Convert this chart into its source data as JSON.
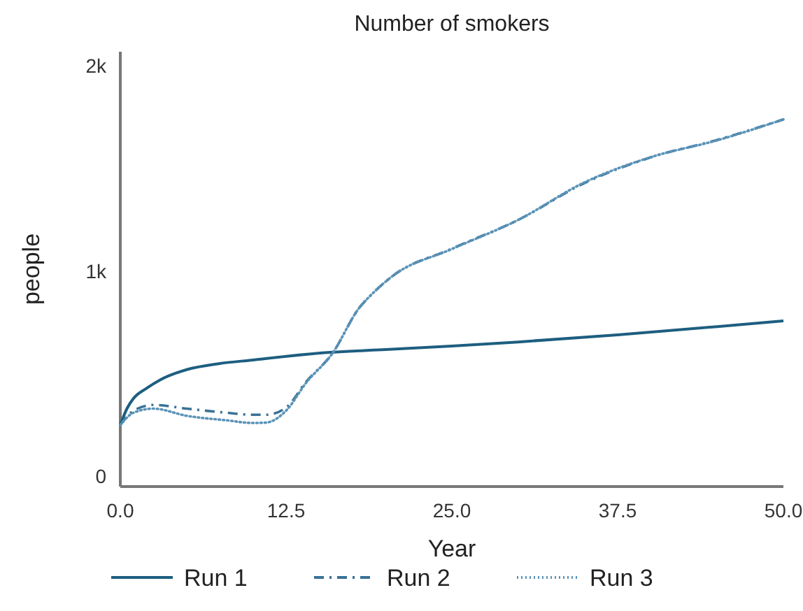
{
  "chart_data": {
    "type": "line",
    "title": "Number of smokers",
    "xlabel": "Year",
    "ylabel": "people",
    "xlim": [
      0,
      50
    ],
    "xticks": [
      {
        "value": 0,
        "label": "0.0"
      },
      {
        "value": 12.5,
        "label": "12.5"
      },
      {
        "value": 25,
        "label": "25.0"
      },
      {
        "value": 37.5,
        "label": "37.5"
      },
      {
        "value": 50,
        "label": "50.0"
      }
    ],
    "ylim": [
      -50,
      2070
    ],
    "yticks": [
      0,
      {
        "value": 1000,
        "label": "1k"
      },
      {
        "value": 2000,
        "label": "2k"
      }
    ],
    "grid": false,
    "legend": "bottom",
    "marker": "none",
    "series": [
      {
        "name": "Run 1",
        "color": "#1d5e80",
        "line_style": "solid",
        "x": [
          0,
          0.5,
          1,
          2,
          3,
          5,
          7.5,
          10,
          12.5,
          16,
          20,
          25,
          30,
          37.5,
          45,
          50
        ],
        "values": [
          250,
          330,
          380,
          430,
          470,
          520,
          550,
          567,
          585,
          605,
          618,
          635,
          655,
          690,
          730,
          758
        ]
      },
      {
        "name": "Run 2",
        "color": "#3a7297",
        "line_style": "dashed",
        "x": [
          0,
          1,
          2.5,
          5,
          8,
          10,
          11,
          12.5,
          14,
          16,
          18,
          19,
          20.5,
          25,
          30,
          35,
          40,
          45,
          50
        ],
        "values": [
          250,
          320,
          348,
          330,
          310,
          300,
          300,
          335,
          460,
          600,
          820,
          890,
          975,
          1110,
          1250,
          1430,
          1555,
          1640,
          1740
        ]
      },
      {
        "name": "Run 3",
        "color": "#5b93b8",
        "line_style": "dotted",
        "x": [
          0,
          1,
          2.5,
          5,
          8,
          10,
          11,
          12.5,
          14,
          16,
          18,
          19,
          20.5,
          25,
          30,
          35,
          40,
          45,
          50
        ],
        "values": [
          250,
          310,
          330,
          295,
          273,
          260,
          262,
          320,
          455,
          600,
          820,
          890,
          975,
          1108,
          1250,
          1433,
          1556,
          1638,
          1740
        ]
      }
    ]
  }
}
